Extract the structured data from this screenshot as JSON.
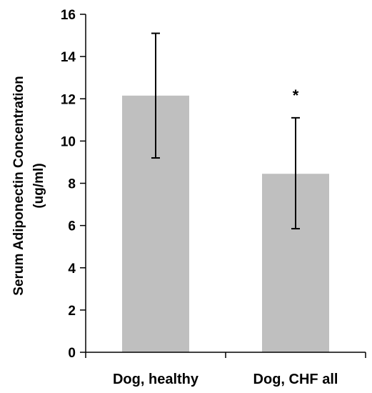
{
  "chart_data": {
    "type": "bar",
    "title": "",
    "ylabel_lines": [
      "Serum Adiponectin Concentration",
      "(ug/ml)"
    ],
    "xlabel": "",
    "categories": [
      "Dog, healthy",
      "Dog, CHF all"
    ],
    "values": [
      12.15,
      8.45
    ],
    "error_low": [
      9.2,
      5.85
    ],
    "error_high": [
      15.1,
      11.1
    ],
    "annotations": [
      "",
      "*"
    ],
    "ylim": [
      0,
      16
    ],
    "yticks": [
      0,
      2,
      4,
      6,
      8,
      10,
      12,
      14,
      16
    ],
    "grid": false,
    "legend": "none",
    "bar_color": "#bfbfbf",
    "axis_color": "#000000"
  }
}
